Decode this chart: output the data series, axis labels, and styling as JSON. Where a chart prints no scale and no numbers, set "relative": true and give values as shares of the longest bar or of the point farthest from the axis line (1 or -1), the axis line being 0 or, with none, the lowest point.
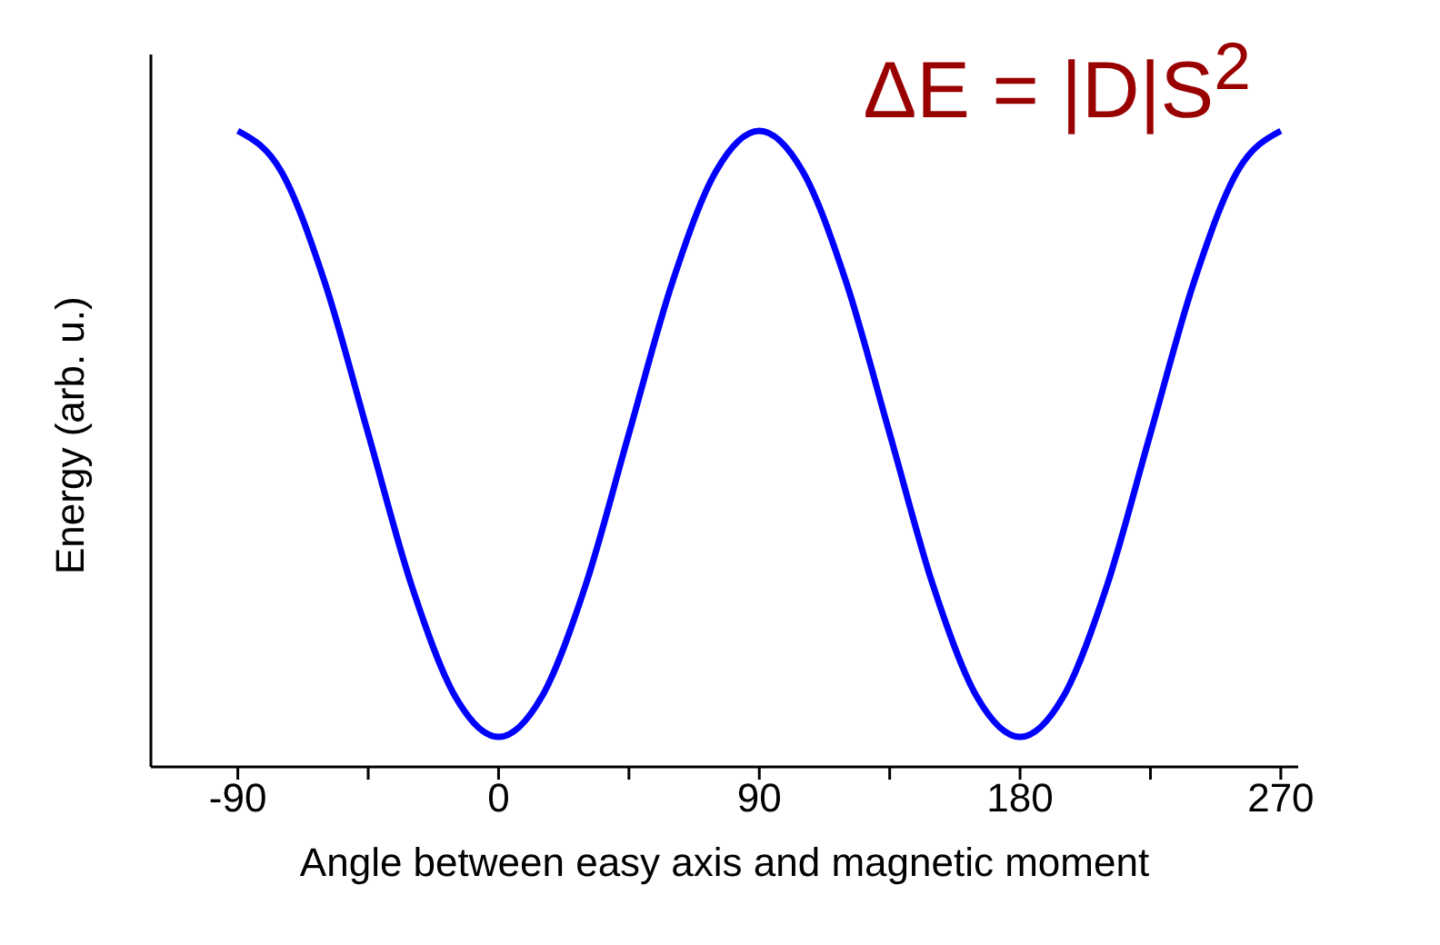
{
  "chart_data": {
    "type": "line",
    "relative": true,
    "xlabel": "Angle between easy axis and magnetic moment",
    "ylabel": "Energy (arb. u.)",
    "annotations": [
      "ΔE = |D|S$^{2}$"
    ],
    "x": [
      -90,
      -75,
      -60,
      -45,
      -30,
      -15,
      0,
      15,
      30,
      45,
      60,
      75,
      90,
      105,
      120,
      135,
      150,
      165,
      180,
      195,
      210,
      225,
      240,
      255,
      270
    ],
    "series": [
      {
        "color": "#0000ff",
        "values": [
          1,
          0.936,
          0.762,
          0.524,
          0.285,
          0.111,
          0.047,
          0.111,
          0.285,
          0.524,
          0.762,
          0.936,
          1,
          0.936,
          0.762,
          0.524,
          0.285,
          0.111,
          0.047,
          0.111,
          0.285,
          0.524,
          0.762,
          0.936,
          1
        ]
      }
    ],
    "xlim": [
      -120,
      276
    ],
    "xticks": [
      -90,
      {
        "value": -45,
        "label": null
      },
      0,
      {
        "value": 45,
        "label": null
      },
      90,
      {
        "value": 135,
        "label": null
      },
      180,
      {
        "value": 225,
        "label": null
      },
      270
    ],
    "tick_labels": "x",
    "grid": false,
    "legend": false,
    "marker": "none",
    "line_style": "solid"
  }
}
